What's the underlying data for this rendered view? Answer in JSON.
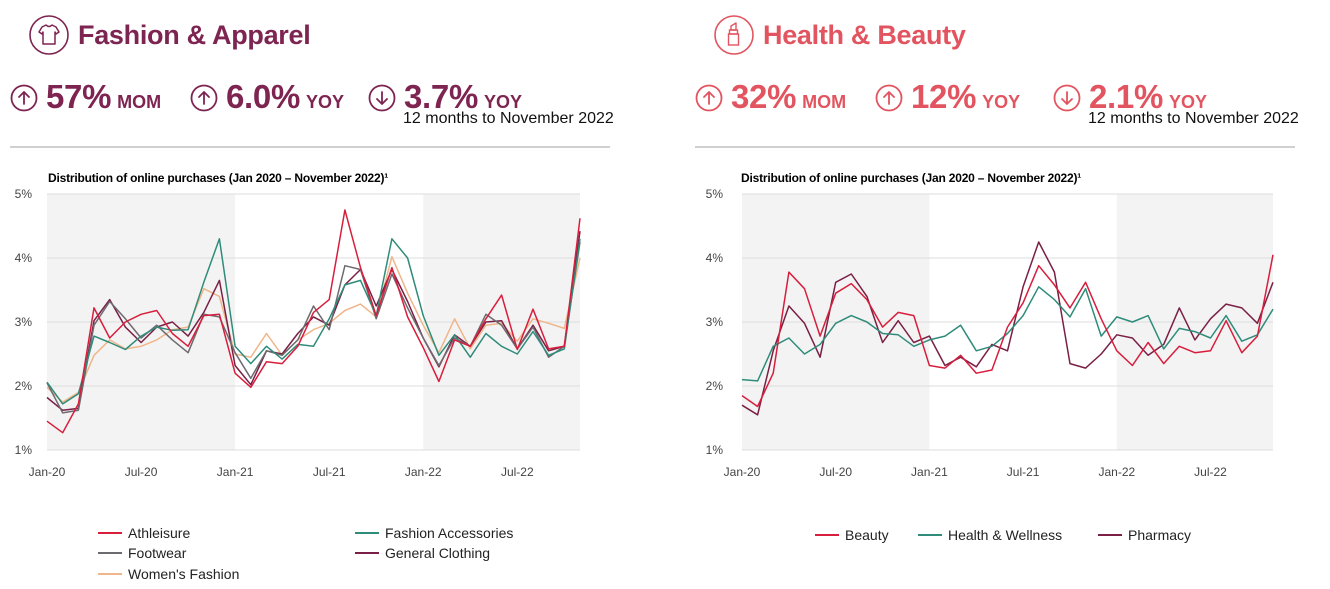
{
  "panels": [
    {
      "title": "Fashion & Apparel",
      "accent": "#7d2451",
      "icon": "tshirt-icon",
      "stats": [
        {
          "dir": "up",
          "value": "57%",
          "unit": "MOM"
        },
        {
          "dir": "up",
          "value": "6.0%",
          "unit": "YOY"
        },
        {
          "dir": "down",
          "value": "3.7%",
          "unit": "YOY"
        }
      ],
      "note": "12 months to November 2022"
    },
    {
      "title": "Health & Beauty",
      "accent": "#e2545f",
      "icon": "lipstick-icon",
      "stats": [
        {
          "dir": "up",
          "value": "32%",
          "unit": "MOM"
        },
        {
          "dir": "up",
          "value": "12%",
          "unit": "YOY"
        },
        {
          "dir": "down",
          "value": "2.1%",
          "unit": "YOY"
        }
      ],
      "note": "12 months to November 2022"
    }
  ],
  "chart_data": [
    {
      "type": "line",
      "title": "Distribution of online purchases (Jan 2020 – November 2022)¹",
      "xlabel": "",
      "ylabel": "",
      "yticks": [
        "1%",
        "2%",
        "3%",
        "4%",
        "5%"
      ],
      "ylim": [
        1,
        5
      ],
      "xticks": [
        "Jan-20",
        "Jul-20",
        "Jan-21",
        "Jul-21",
        "Jan-22",
        "Jul-22"
      ],
      "x": [
        "Jan-20",
        "Feb-20",
        "Mar-20",
        "Apr-20",
        "May-20",
        "Jun-20",
        "Jul-20",
        "Aug-20",
        "Sep-20",
        "Oct-20",
        "Nov-20",
        "Dec-20",
        "Jan-21",
        "Feb-21",
        "Mar-21",
        "Apr-21",
        "May-21",
        "Jun-21",
        "Jul-21",
        "Aug-21",
        "Sep-21",
        "Oct-21",
        "Nov-21",
        "Dec-21",
        "Jan-22",
        "Feb-22",
        "Mar-22",
        "Apr-22",
        "May-22",
        "Jun-22",
        "Jul-22",
        "Aug-22",
        "Sep-22",
        "Oct-22",
        "Nov-22"
      ],
      "shaded_years": [
        "2020",
        "2022"
      ],
      "grid": "horizontal",
      "legend_position": "bottom",
      "series": [
        {
          "name": "Athleisure",
          "color": "#d81e3d",
          "values": [
            1.45,
            1.27,
            1.72,
            3.22,
            2.75,
            3.0,
            3.12,
            3.18,
            2.82,
            2.62,
            3.1,
            3.12,
            2.2,
            1.98,
            2.38,
            2.35,
            2.62,
            3.15,
            3.35,
            4.75,
            3.85,
            3.1,
            3.85,
            3.08,
            2.6,
            2.07,
            2.72,
            2.62,
            3.05,
            3.42,
            2.57,
            3.2,
            2.58,
            2.62,
            4.62
          ]
        },
        {
          "name": "Fashion Accessories",
          "color": "#2f8c7a",
          "values": [
            2.06,
            1.72,
            1.88,
            2.78,
            2.68,
            2.57,
            2.78,
            2.92,
            2.87,
            2.88,
            3.62,
            4.3,
            2.62,
            2.35,
            2.62,
            2.42,
            2.65,
            2.62,
            3.05,
            3.58,
            3.65,
            3.1,
            4.3,
            4.0,
            3.1,
            2.48,
            2.8,
            2.45,
            2.82,
            2.62,
            2.5,
            2.85,
            2.48,
            2.58,
            4.3
          ]
        },
        {
          "name": "Footwear",
          "color": "#6d6b70",
          "values": [
            2.05,
            1.58,
            1.62,
            2.95,
            3.32,
            3.05,
            2.75,
            2.95,
            2.72,
            2.52,
            3.12,
            3.08,
            2.52,
            2.12,
            2.55,
            2.48,
            2.72,
            3.25,
            2.88,
            3.88,
            3.82,
            3.05,
            3.75,
            3.22,
            2.75,
            2.32,
            2.75,
            2.62,
            3.12,
            2.95,
            2.58,
            2.92,
            2.45,
            2.62,
            4.25
          ]
        },
        {
          "name": "General Clothing",
          "color": "#7a1f45",
          "values": [
            1.82,
            1.62,
            1.65,
            3.02,
            3.35,
            2.92,
            2.68,
            2.92,
            3.0,
            2.78,
            3.15,
            3.65,
            2.32,
            2.02,
            2.55,
            2.5,
            2.82,
            3.08,
            2.95,
            3.58,
            3.82,
            3.25,
            3.82,
            3.32,
            2.75,
            2.3,
            2.8,
            2.62,
            3.0,
            3.02,
            2.58,
            2.95,
            2.55,
            2.62,
            4.42
          ]
        },
        {
          "name": "Women's Fashion",
          "color": "#f0b68a",
          "values": [
            1.98,
            1.75,
            1.9,
            2.48,
            2.72,
            2.58,
            2.62,
            2.72,
            2.88,
            2.92,
            3.52,
            3.4,
            2.5,
            2.45,
            2.82,
            2.48,
            2.72,
            2.88,
            2.98,
            3.18,
            3.28,
            3.08,
            4.02,
            3.45,
            2.95,
            2.52,
            3.05,
            2.58,
            2.95,
            2.98,
            2.7,
            3.05,
            2.98,
            2.9,
            4.0
          ]
        }
      ]
    },
    {
      "type": "line",
      "title": "Distribution of online purchases (Jan 2020 – November 2022)¹",
      "xlabel": "",
      "ylabel": "",
      "yticks": [
        "1%",
        "2%",
        "3%",
        "4%",
        "5%"
      ],
      "ylim": [
        1,
        5
      ],
      "xticks": [
        "Jan-20",
        "Jul-20",
        "Jan-21",
        "Jul-21",
        "Jan-22",
        "Jul-22"
      ],
      "x": [
        "Jan-20",
        "Feb-20",
        "Mar-20",
        "Apr-20",
        "May-20",
        "Jun-20",
        "Jul-20",
        "Aug-20",
        "Sep-20",
        "Oct-20",
        "Nov-20",
        "Dec-20",
        "Jan-21",
        "Feb-21",
        "Mar-21",
        "Apr-21",
        "May-21",
        "Jun-21",
        "Jul-21",
        "Aug-21",
        "Sep-21",
        "Oct-21",
        "Nov-21",
        "Dec-21",
        "Jan-22",
        "Feb-22",
        "Mar-22",
        "Apr-22",
        "May-22",
        "Jun-22",
        "Jul-22",
        "Aug-22",
        "Sep-22",
        "Oct-22",
        "Nov-22"
      ],
      "shaded_years": [
        "2020",
        "2022"
      ],
      "grid": "horizontal",
      "legend_position": "bottom",
      "series": [
        {
          "name": "Beauty",
          "color": "#d81e3d",
          "values": [
            1.85,
            1.68,
            2.2,
            3.78,
            3.52,
            2.78,
            3.45,
            3.6,
            3.35,
            2.92,
            3.15,
            3.1,
            2.32,
            2.28,
            2.48,
            2.2,
            2.25,
            2.92,
            3.3,
            3.88,
            3.58,
            3.22,
            3.62,
            3.05,
            2.55,
            2.32,
            2.68,
            2.35,
            2.62,
            2.52,
            2.55,
            3.02,
            2.52,
            2.78,
            4.05
          ]
        },
        {
          "name": "Health & Wellness",
          "color": "#2f8c7a",
          "values": [
            2.1,
            2.08,
            2.62,
            2.75,
            2.5,
            2.65,
            2.98,
            3.1,
            3.0,
            2.82,
            2.8,
            2.62,
            2.72,
            2.78,
            2.95,
            2.55,
            2.62,
            2.82,
            3.1,
            3.55,
            3.35,
            3.08,
            3.52,
            2.78,
            3.08,
            3.0,
            3.1,
            2.58,
            2.9,
            2.85,
            2.75,
            3.1,
            2.7,
            2.8,
            3.2
          ]
        },
        {
          "name": "Pharmacy",
          "color": "#7a1f45",
          "values": [
            1.7,
            1.55,
            2.55,
            3.25,
            2.98,
            2.45,
            3.62,
            3.75,
            3.4,
            2.68,
            3.02,
            2.68,
            2.78,
            2.32,
            2.45,
            2.3,
            2.65,
            2.55,
            3.55,
            4.25,
            3.78,
            2.35,
            2.28,
            2.5,
            2.8,
            2.75,
            2.48,
            2.65,
            3.22,
            2.72,
            3.05,
            3.28,
            3.22,
            2.98,
            3.62
          ]
        }
      ]
    }
  ]
}
